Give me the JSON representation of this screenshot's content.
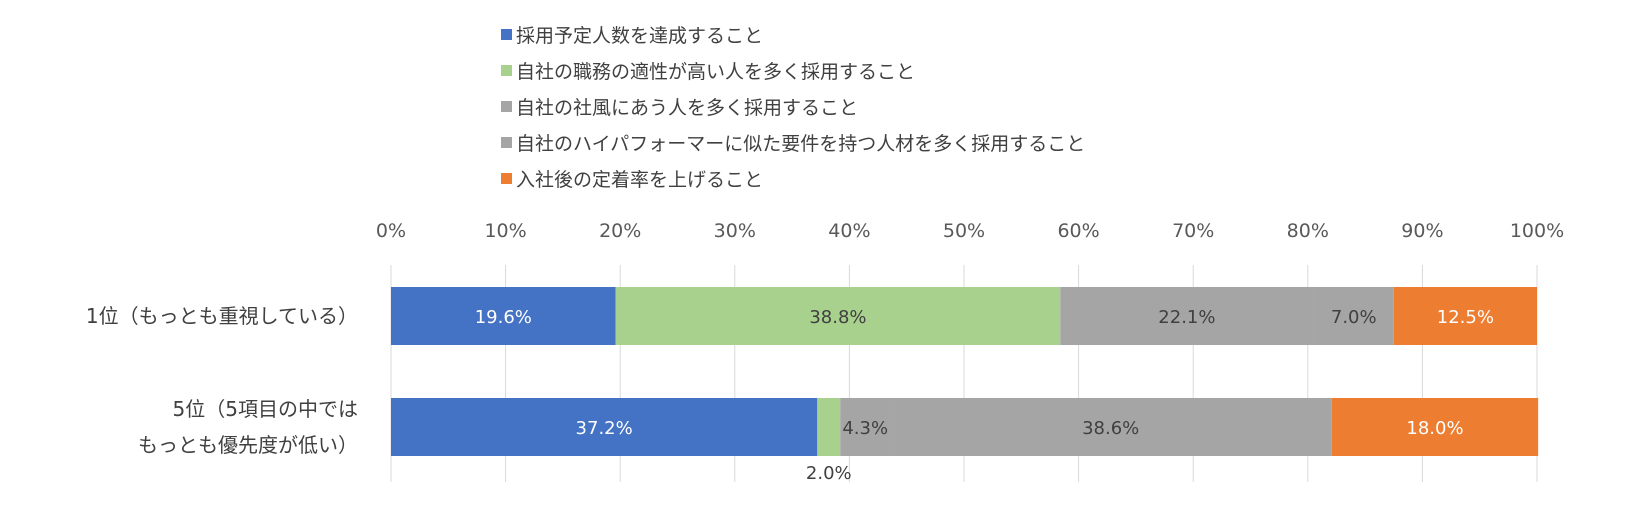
{
  "chart_data": {
    "type": "bar",
    "orientation": "horizontal",
    "stacked": "percent",
    "categories": [
      [
        "1位（もっとも重視している）"
      ],
      [
        "5位（5項目の中では",
        "もっとも優先度が低い）"
      ]
    ],
    "series": [
      {
        "name": "採用予定人数を達成すること",
        "color": "#4472C4",
        "values": [
          19.6,
          37.2
        ],
        "labels": [
          "19.6%",
          "37.2%"
        ]
      },
      {
        "name": "自社の職務の適性が高い人を多く採用すること",
        "color": "#A9D18E",
        "values": [
          38.8,
          2.0
        ],
        "labels": [
          "38.8%",
          "2.0%"
        ]
      },
      {
        "name": "自社の社風にあう人を多く採用すること",
        "color": "#A5A5A5",
        "values": [
          22.1,
          4.3
        ],
        "labels": [
          "22.1%",
          "4.3%"
        ]
      },
      {
        "name": "自社のハイパフォーマーに似た要件を持つ人材を多く採用すること",
        "color": "#A5A5A5",
        "values": [
          7.0,
          38.6
        ],
        "labels": [
          "7.0%",
          "38.6%"
        ]
      },
      {
        "name": "入社後の定着率を上げること",
        "color": "#ED7D31",
        "values": [
          12.5,
          18.0
        ],
        "labels": [
          "12.5%",
          "18.0%"
        ]
      }
    ],
    "xlim": [
      0,
      100
    ],
    "xticks": [
      "0%",
      "10%",
      "20%",
      "30%",
      "40%",
      "50%",
      "60%",
      "70%",
      "80%",
      "90%",
      "100%"
    ],
    "grid": true,
    "legend_position": "top"
  }
}
